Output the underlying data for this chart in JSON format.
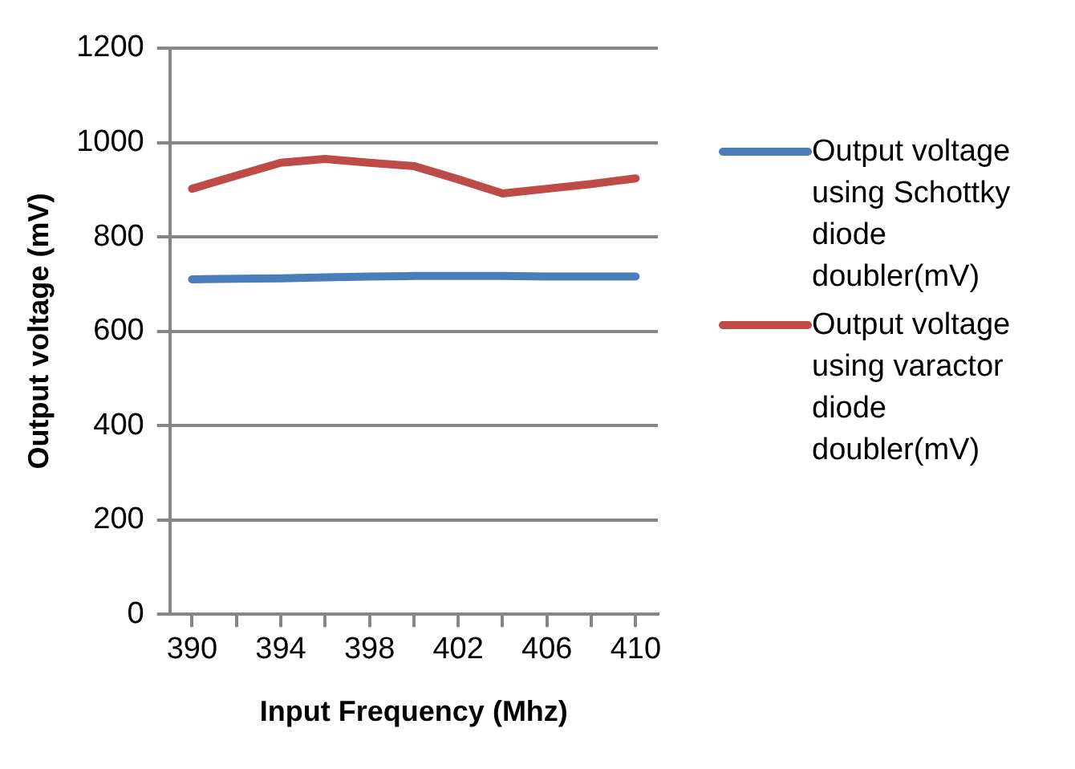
{
  "chart_data": {
    "type": "line",
    "xlabel": "Input Frequency (Mhz)",
    "ylabel": "Output voltage (mV)",
    "categories": [
      "390",
      null,
      "394",
      null,
      "398",
      null,
      "402",
      null,
      "406",
      null,
      "410"
    ],
    "series": [
      {
        "name": "Output voltage using Schottky diode doubler(mV)",
        "color": "#4a7ebb",
        "values": [
          710,
          711,
          712,
          714,
          716,
          717,
          717,
          717,
          716,
          716,
          716
        ]
      },
      {
        "name": "Output voltage using varactor diode doubler(mV)",
        "color": "#be4b48",
        "values": [
          902,
          930,
          957,
          965,
          957,
          950,
          922,
          892,
          902,
          912,
          924
        ]
      }
    ],
    "ylim": [
      0,
      1200
    ],
    "yticks": [
      0,
      200,
      400,
      600,
      800,
      1000,
      1200
    ],
    "grid": "y",
    "legend": "right",
    "marker": "none",
    "line_style": "solid"
  }
}
